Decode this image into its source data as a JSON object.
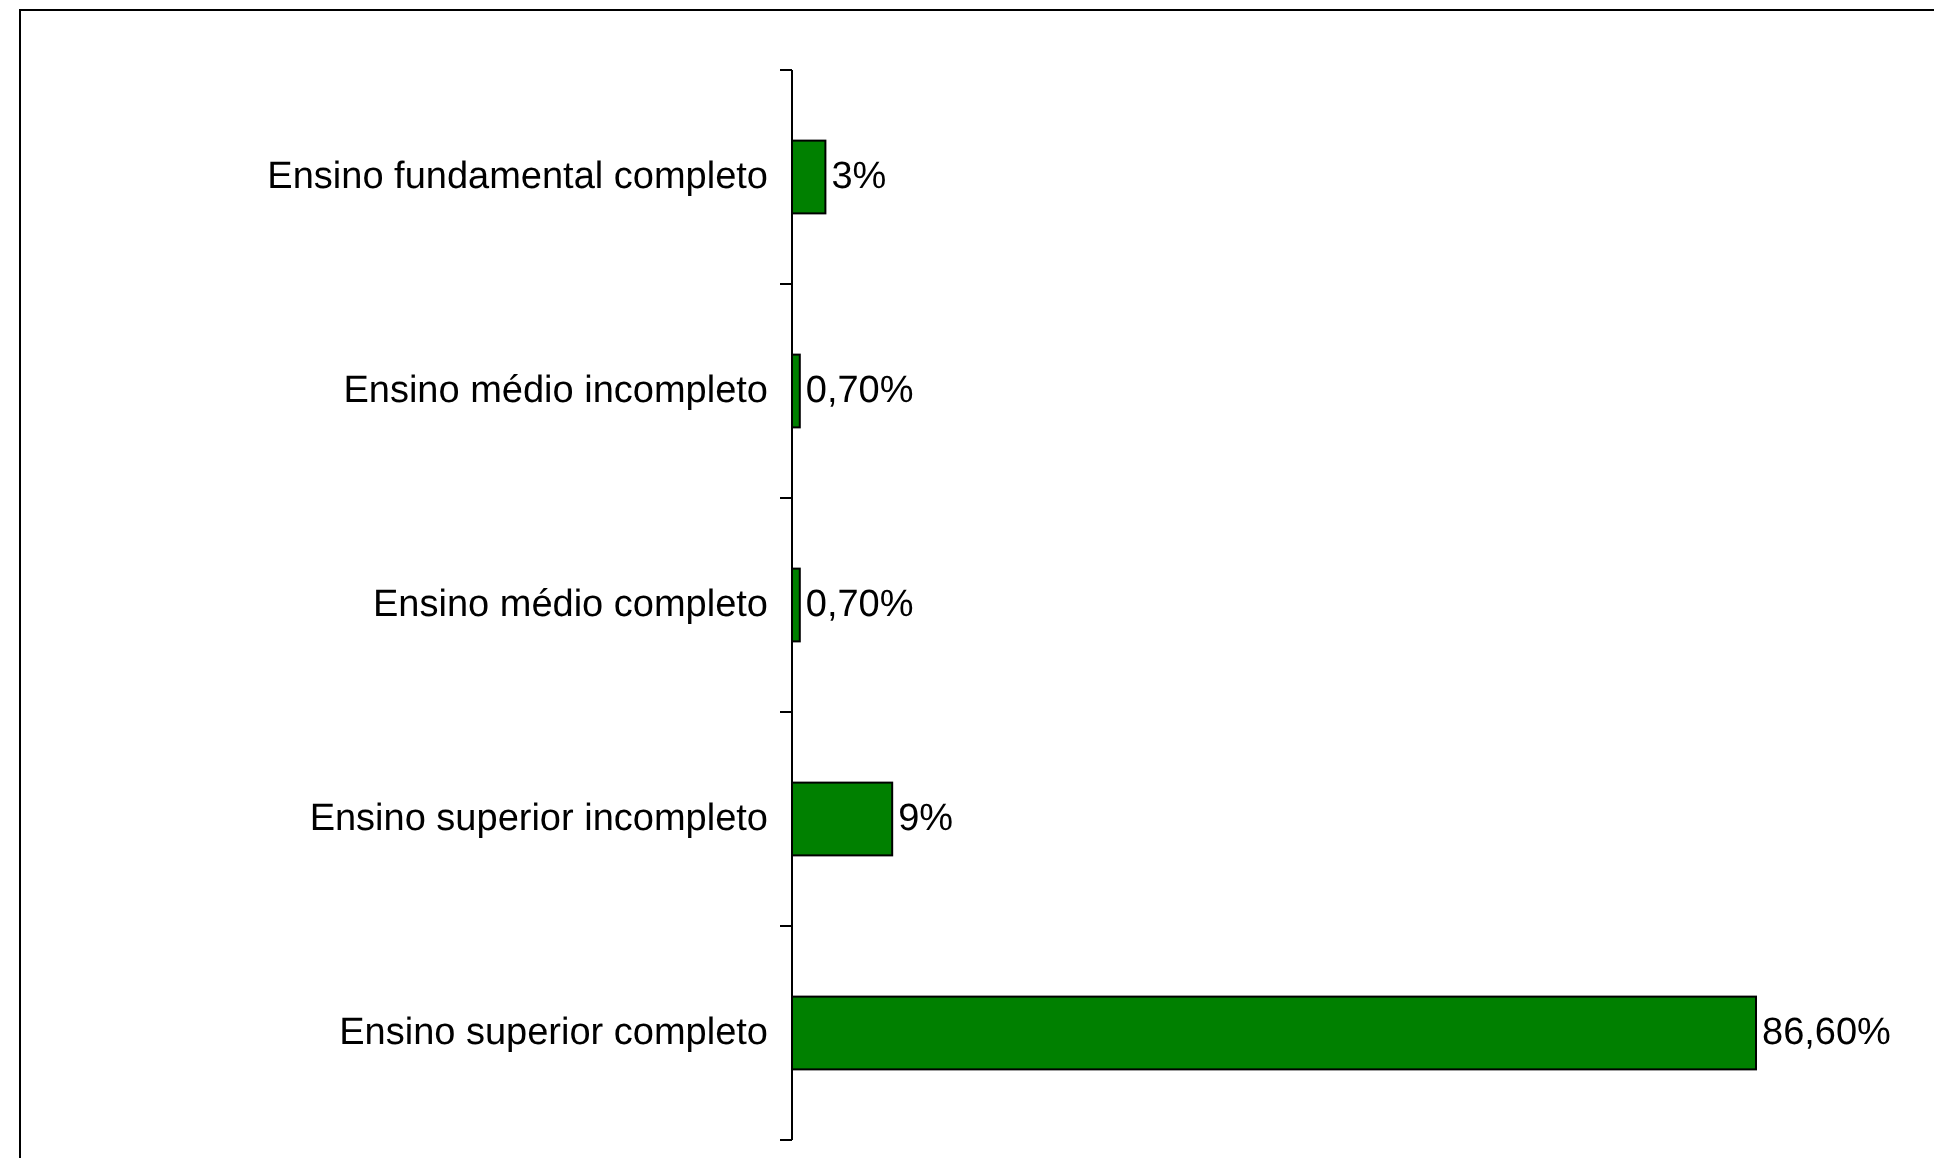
{
  "chart_data": {
    "type": "bar",
    "orientation": "horizontal",
    "categories": [
      "Ensino fundamental completo",
      "Ensino médio incompleto",
      "Ensino médio completo",
      "Ensino superior incompleto",
      "Ensino superior completo"
    ],
    "values": [
      3,
      0.7,
      0.7,
      9,
      86.6
    ],
    "value_labels": [
      "3%",
      "0,70%",
      "0,70%",
      "9%",
      "86,60%"
    ],
    "color": "#008000"
  }
}
